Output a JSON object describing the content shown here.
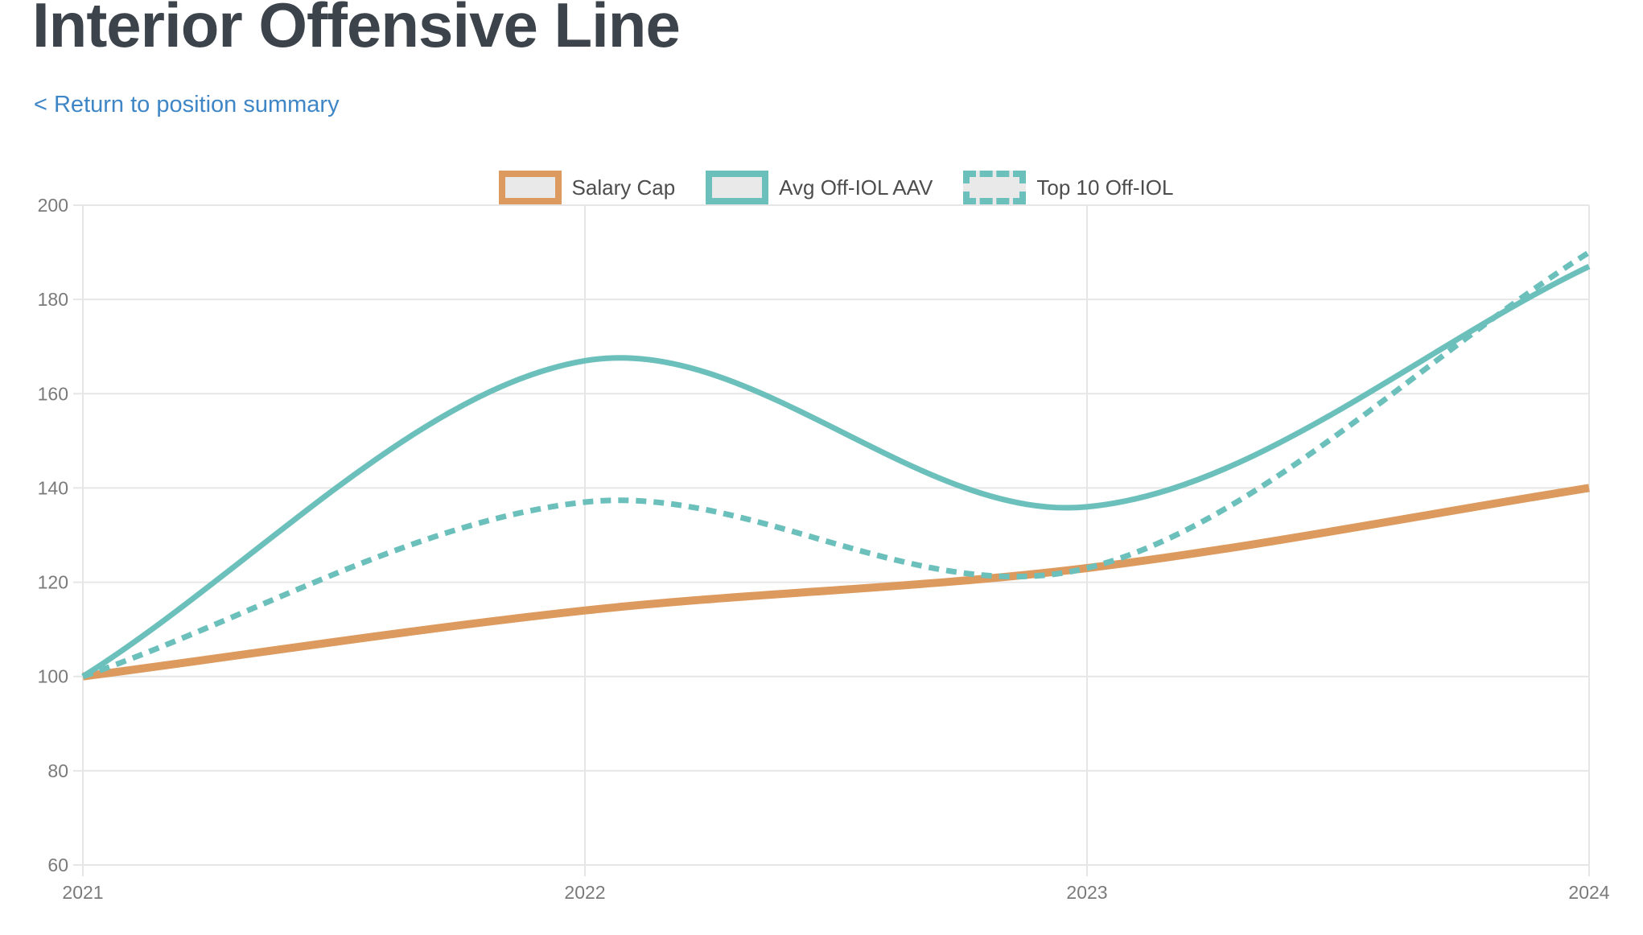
{
  "page": {
    "title": "Interior Offensive Line",
    "back_link": "< Return to position summary"
  },
  "colors": {
    "title": "#3c434b",
    "link": "#3e86c6",
    "salary_cap": "#dd9a5e",
    "teal": "#6cc0bc",
    "grid": "#e6e6e6",
    "tick_label": "#7a7a7a",
    "legend_text": "#4d4d4d",
    "swatch_fill": "#e9e9e9"
  },
  "chart_data": {
    "type": "line",
    "x": [
      2021,
      2022,
      2023,
      2024
    ],
    "x_tick_labels": [
      "2021",
      "2022",
      "2023",
      "2024"
    ],
    "y_ticks": [
      60,
      80,
      100,
      120,
      140,
      160,
      180,
      200
    ],
    "ylim": [
      60,
      200
    ],
    "xlabel": "",
    "ylabel": "",
    "title": "",
    "grid": true,
    "legend_position": "top-center",
    "interpolation": "smooth-spline",
    "series": [
      {
        "name": "Salary Cap",
        "values": [
          100,
          114,
          123,
          140
        ],
        "color": "#dd9a5e",
        "style": "solid",
        "width": 10
      },
      {
        "name": "Avg Off-IOL AAV",
        "values": [
          100,
          167,
          136,
          187
        ],
        "color": "#6cc0bc",
        "style": "solid",
        "width": 7
      },
      {
        "name": "Top 10 Off-IOL",
        "values": [
          100,
          137,
          123,
          190
        ],
        "color": "#6cc0bc",
        "style": "dashed",
        "width": 7
      }
    ]
  }
}
